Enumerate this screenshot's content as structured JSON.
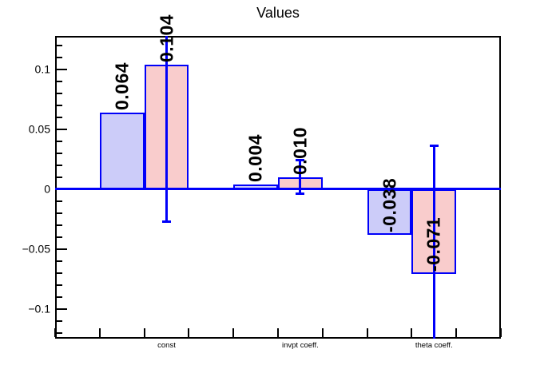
{
  "chart_data": {
    "type": "bar",
    "title": "Values",
    "categories": [
      "const",
      "invpt coeff.",
      "theta coeff."
    ],
    "series": [
      {
        "name": "blue",
        "fill_color": "#ccccf9",
        "line_color": "#0000f9",
        "values": [
          0.064,
          0.004,
          -0.038
        ],
        "value_labels": [
          "0.064",
          "0.004",
          "-0.038"
        ]
      },
      {
        "name": "pink",
        "fill_color": "#f9cccc",
        "line_color": "#0000f9",
        "values": [
          0.104,
          0.01,
          -0.071
        ],
        "value_labels": [
          "0.104",
          "0.010",
          "-0.071"
        ],
        "errors": [
          0.131,
          0.014,
          0.107
        ]
      }
    ],
    "ylim": [
      -0.125,
      0.128
    ],
    "yticks": [
      {
        "value": 0.1,
        "label": "0.1"
      },
      {
        "value": 0.05,
        "label": "0.05"
      },
      {
        "value": 0,
        "label": "0"
      },
      {
        "value": -0.05,
        "label": "−0.05"
      },
      {
        "value": -0.1,
        "label": "−0.1"
      }
    ],
    "y_minor_step": 0.01,
    "grid": false,
    "legend": "none",
    "colors": {
      "axis_line": "#0000f9",
      "frame": "#000000",
      "text": "#000000"
    }
  }
}
